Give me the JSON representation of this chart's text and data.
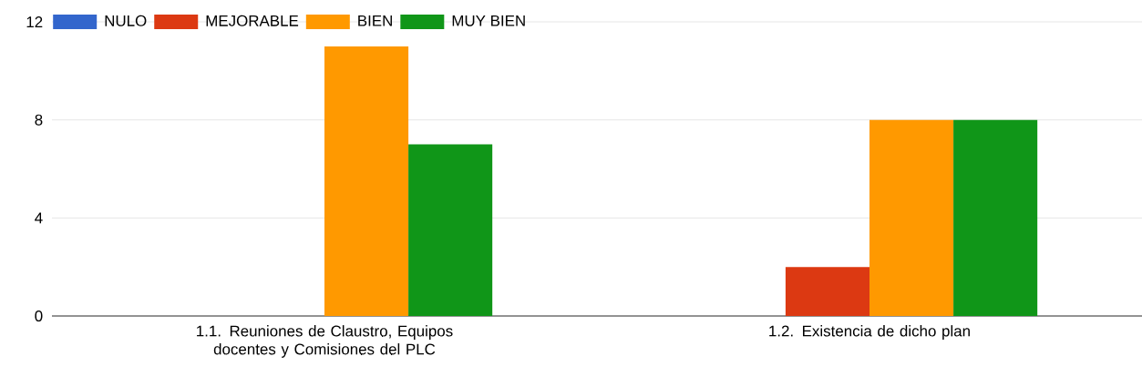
{
  "chart_data": {
    "type": "bar",
    "categories": [
      "1.1. Reuniones de Claustro, Equipos docentes y Comisiones del PLC",
      "1.2. Existencia de dicho plan"
    ],
    "series": [
      {
        "name": "NULO",
        "color": "#3366cc",
        "values": [
          0,
          0
        ]
      },
      {
        "name": "MEJORABLE",
        "color": "#dc3912",
        "values": [
          0,
          2
        ]
      },
      {
        "name": "BIEN",
        "color": "#ff9900",
        "values": [
          11,
          8
        ]
      },
      {
        "name": "MUY BIEN",
        "color": "#109618",
        "values": [
          7,
          8
        ]
      }
    ],
    "ylim": [
      0,
      12
    ],
    "yticks": [
      0,
      4,
      8,
      12
    ],
    "grid": "y",
    "legend": "top left"
  }
}
